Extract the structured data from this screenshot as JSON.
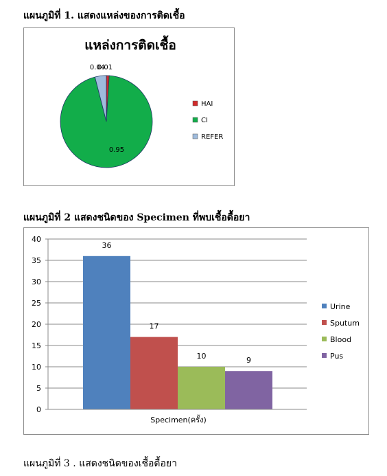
{
  "captions": {
    "figure1": "แผนภูมิที่ 1. แสดงแหล่งของการติดเชื้อ",
    "figure2": "แผนภูมิที่ 2  แสดงชนิดของ Specimen ที่พบเชื้อดื้อยา",
    "figure3": "แผนภูมิที่ 3 . แสดงชนิดของเชื้อดื้อยา"
  },
  "chart_data": [
    {
      "type": "pie",
      "title": "แหล่งการติดเชื้อ",
      "slices": [
        {
          "label": "HAI",
          "value": 0.01,
          "value_label": "0.01",
          "color": "#d12b2b"
        },
        {
          "label": "CI",
          "value": 0.95,
          "value_label": "0.95",
          "color": "#12ad4a"
        },
        {
          "label": "REFER",
          "value": 0.04,
          "value_label": "0.04",
          "color": "#9fbbdc"
        }
      ],
      "legend_position": "right"
    },
    {
      "type": "bar",
      "xlabel": "Specimen(ครั้ง)",
      "ylabel": "",
      "ylim": [
        0,
        40
      ],
      "yticks": [
        0,
        5,
        10,
        15,
        20,
        25,
        30,
        35,
        40
      ],
      "grid": true,
      "legend_position": "right",
      "series": [
        {
          "name": "Urine",
          "value": 36,
          "color": "#4f81bd"
        },
        {
          "name": "Sputum",
          "value": 17,
          "color": "#c0504d"
        },
        {
          "name": "Blood",
          "value": 10,
          "color": "#9bbb59"
        },
        {
          "name": "Pus",
          "value": 9,
          "color": "#8064a2"
        }
      ]
    }
  ]
}
